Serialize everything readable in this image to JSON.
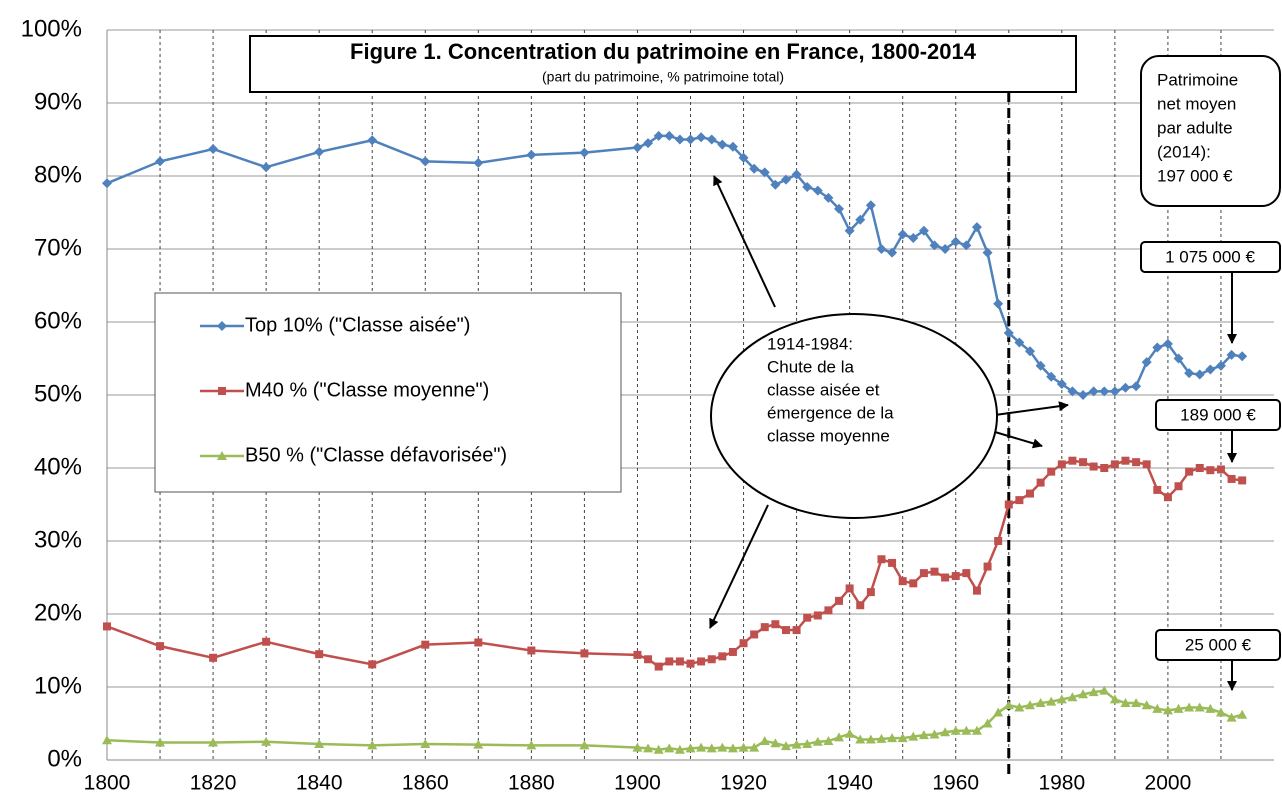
{
  "chart_data": {
    "type": "line",
    "title": "Figure 1. Concentration du patrimoine en France, 1800-2014",
    "subtitle": "(part du patrimoine, % patrimoine total)",
    "x": [
      1800,
      1810,
      1820,
      1830,
      1840,
      1850,
      1860,
      1870,
      1880,
      1890,
      1900,
      1902,
      1904,
      1906,
      1908,
      1910,
      1912,
      1914,
      1916,
      1918,
      1920,
      1922,
      1924,
      1926,
      1928,
      1930,
      1932,
      1934,
      1936,
      1938,
      1940,
      1942,
      1944,
      1946,
      1948,
      1950,
      1952,
      1954,
      1956,
      1958,
      1960,
      1962,
      1964,
      1966,
      1968,
      1970,
      1972,
      1974,
      1976,
      1978,
      1980,
      1982,
      1984,
      1986,
      1988,
      1990,
      1992,
      1994,
      1996,
      1998,
      2000,
      2002,
      2004,
      2006,
      2008,
      2010,
      2012,
      2014
    ],
    "series": [
      {
        "name": "Top 10% (\"Classe aisée\")",
        "color": "#4f81bd",
        "marker": "diamond",
        "values": [
          79,
          82,
          83.7,
          81.2,
          83.3,
          84.9,
          82,
          81.8,
          82.9,
          83.2,
          83.9,
          84.5,
          85.5,
          85.5,
          85,
          85,
          85.3,
          85,
          84.3,
          84,
          82.5,
          81,
          80.5,
          78.8,
          79.5,
          80.2,
          78.5,
          78,
          77,
          75.5,
          72.5,
          74,
          76,
          70,
          69.5,
          72,
          71.5,
          72.5,
          70.5,
          70,
          71,
          70.5,
          73,
          69.5,
          62.5,
          58.5,
          57.2,
          56,
          54,
          52.5,
          51.5,
          50.5,
          50,
          50.5,
          50.5,
          50.5,
          51,
          51.2,
          54.5,
          56.5,
          57,
          55,
          53,
          52.8,
          53.5,
          54,
          55.5,
          55.3
        ]
      },
      {
        "name": "M40 % (\"Classe moyenne\")",
        "color": "#c0504d",
        "marker": "square",
        "values": [
          18.3,
          15.6,
          14,
          16.2,
          14.5,
          13.1,
          15.8,
          16.1,
          15,
          14.6,
          14.4,
          13.8,
          12.8,
          13.5,
          13.5,
          13.2,
          13.5,
          13.8,
          14.2,
          14.8,
          16,
          17.2,
          18.2,
          18.6,
          17.8,
          17.8,
          19.5,
          19.8,
          20.5,
          21.8,
          23.5,
          21.2,
          23,
          27.5,
          27,
          24.5,
          24.2,
          25.6,
          25.8,
          25,
          25.2,
          25.6,
          23.2,
          26.5,
          30,
          35,
          35.6,
          36.5,
          38,
          39.5,
          40.5,
          41,
          40.8,
          40.2,
          40,
          40.5,
          41,
          40.8,
          40.5,
          37,
          36,
          37.5,
          39.5,
          40,
          39.7,
          39.8,
          38.5,
          38.3
        ]
      },
      {
        "name": "B50 % (\"Classe défavorisée\")",
        "color": "#9bbb59",
        "marker": "triangle",
        "values": [
          2.7,
          2.4,
          2.4,
          2.5,
          2.2,
          2,
          2.2,
          2.1,
          2,
          2,
          1.7,
          1.6,
          1.4,
          1.6,
          1.4,
          1.6,
          1.7,
          1.6,
          1.7,
          1.6,
          1.7,
          1.7,
          2.6,
          2.3,
          1.9,
          2.1,
          2.2,
          2.5,
          2.6,
          3.1,
          3.6,
          2.8,
          2.8,
          2.9,
          3,
          3,
          3.2,
          3.4,
          3.5,
          3.8,
          4,
          4,
          4,
          5,
          6.5,
          7.5,
          7.2,
          7.5,
          7.8,
          8,
          8.3,
          8.6,
          9,
          9.3,
          9.5,
          8.3,
          7.8,
          7.8,
          7.5,
          7,
          6.8,
          7,
          7.2,
          7.2,
          7,
          6.5,
          5.8,
          6.2
        ]
      }
    ],
    "xlim": [
      1800,
      2020
    ],
    "xticks": [
      1800,
      1820,
      1840,
      1860,
      1880,
      1900,
      1920,
      1940,
      1960,
      1980,
      2000
    ],
    "xgrid": [
      1810,
      1830,
      1850,
      1870,
      1890,
      1910,
      1930,
      1950,
      1970,
      1990,
      2010
    ],
    "ylim": [
      0,
      100
    ],
    "yticks": [
      {
        "value": 0,
        "label": "0%"
      },
      {
        "value": 10,
        "label": "10%"
      },
      {
        "value": 20,
        "label": "20%"
      },
      {
        "value": 30,
        "label": "30%"
      },
      {
        "value": 40,
        "label": "40%"
      },
      {
        "value": 50,
        "label": "50%"
      },
      {
        "value": 60,
        "label": "60%"
      },
      {
        "value": 70,
        "label": "70%"
      },
      {
        "value": 80,
        "label": "80%"
      },
      {
        "value": 90,
        "label": "90%"
      },
      {
        "value": 100,
        "label": "100%"
      }
    ],
    "grid": true,
    "vline": 1970,
    "annotations": {
      "note": [
        "1914-1984:",
        "Chute de la",
        "classe aisée et",
        "émergence de la",
        "classe moyenne"
      ],
      "average": [
        "Patrimoine",
        "net moyen",
        "par adulte",
        "(2014):",
        "197 000 €"
      ],
      "callouts": [
        "1 075 000 €",
        "189 000 €",
        "25 000 €"
      ]
    }
  }
}
